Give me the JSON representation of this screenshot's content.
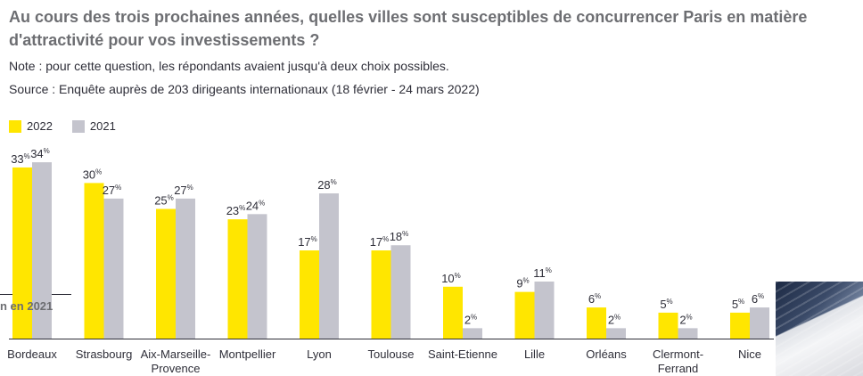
{
  "header": {
    "title": "Au cours des trois prochaines années, quelles villes sont susceptibles de concurrencer Paris en matière d'attractivité pour vos investissements ?",
    "note": "Note : pour cette question, les répondants avaient jusqu'à deux choix possibles.",
    "source": "Source : Enquête auprès de 203 dirigeants internationaux (18 février - 24 mars 2022)"
  },
  "side_label": "n en 2021",
  "colors": {
    "series_2022": "#ffe600",
    "series_2021": "#c4c4cd",
    "title": "#6d6e72",
    "text": "#2e2e38"
  },
  "chart_data": {
    "type": "bar",
    "title": "",
    "xlabel": "",
    "ylabel": "",
    "ylim": [
      0,
      35
    ],
    "grid": false,
    "legend_position": "top-left",
    "categories": [
      [
        "Bordeaux"
      ],
      [
        "Strasbourg"
      ],
      [
        "Aix-Marseille-",
        "Provence"
      ],
      [
        "Montpellier"
      ],
      [
        "Lyon"
      ],
      [
        "Toulouse"
      ],
      [
        "Saint-Etienne"
      ],
      [
        "Lille"
      ],
      [
        "Orléans"
      ],
      [
        "Clermont-",
        "Ferrand"
      ],
      [
        "Nice"
      ]
    ],
    "series": [
      {
        "name": "2022",
        "values": [
          33,
          30,
          25,
          23,
          17,
          17,
          10,
          9,
          6,
          5,
          5
        ]
      },
      {
        "name": "2021",
        "values": [
          34,
          27,
          27,
          24,
          28,
          18,
          2,
          11,
          2,
          2,
          6
        ]
      }
    ],
    "value_suffix": "%"
  }
}
